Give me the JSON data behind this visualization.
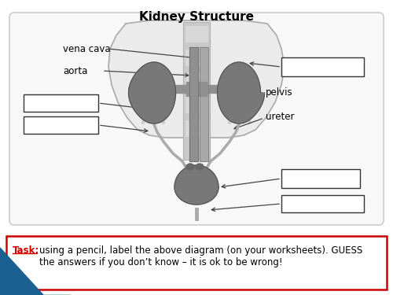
{
  "title": "Kidney Structure",
  "title_fontsize": 11,
  "title_fontweight": "bold",
  "bg_color": "#ffffff",
  "task_text": "using a pencil, label the above diagram (on your worksheets). GUESS\nthe answers if you don’t know – it is ok to be wrong!",
  "task_label": "Task:",
  "task_label_color": "#cc0000",
  "task_box_color": "#ffffff",
  "task_box_edge": "#cc0000",
  "organ_color": "#787878",
  "organ_edge": "#555555",
  "body_fill": "#ebebeb",
  "body_edge": "#aaaaaa",
  "spine_fill": "#c8c8c8",
  "vessel_dark": "#888888",
  "vessel_light": "#aaaaaa",
  "line_color": "#444444",
  "box_edge": "#333333",
  "diagram_bg": "#f8f8f8",
  "diagram_edge": "#cccccc"
}
